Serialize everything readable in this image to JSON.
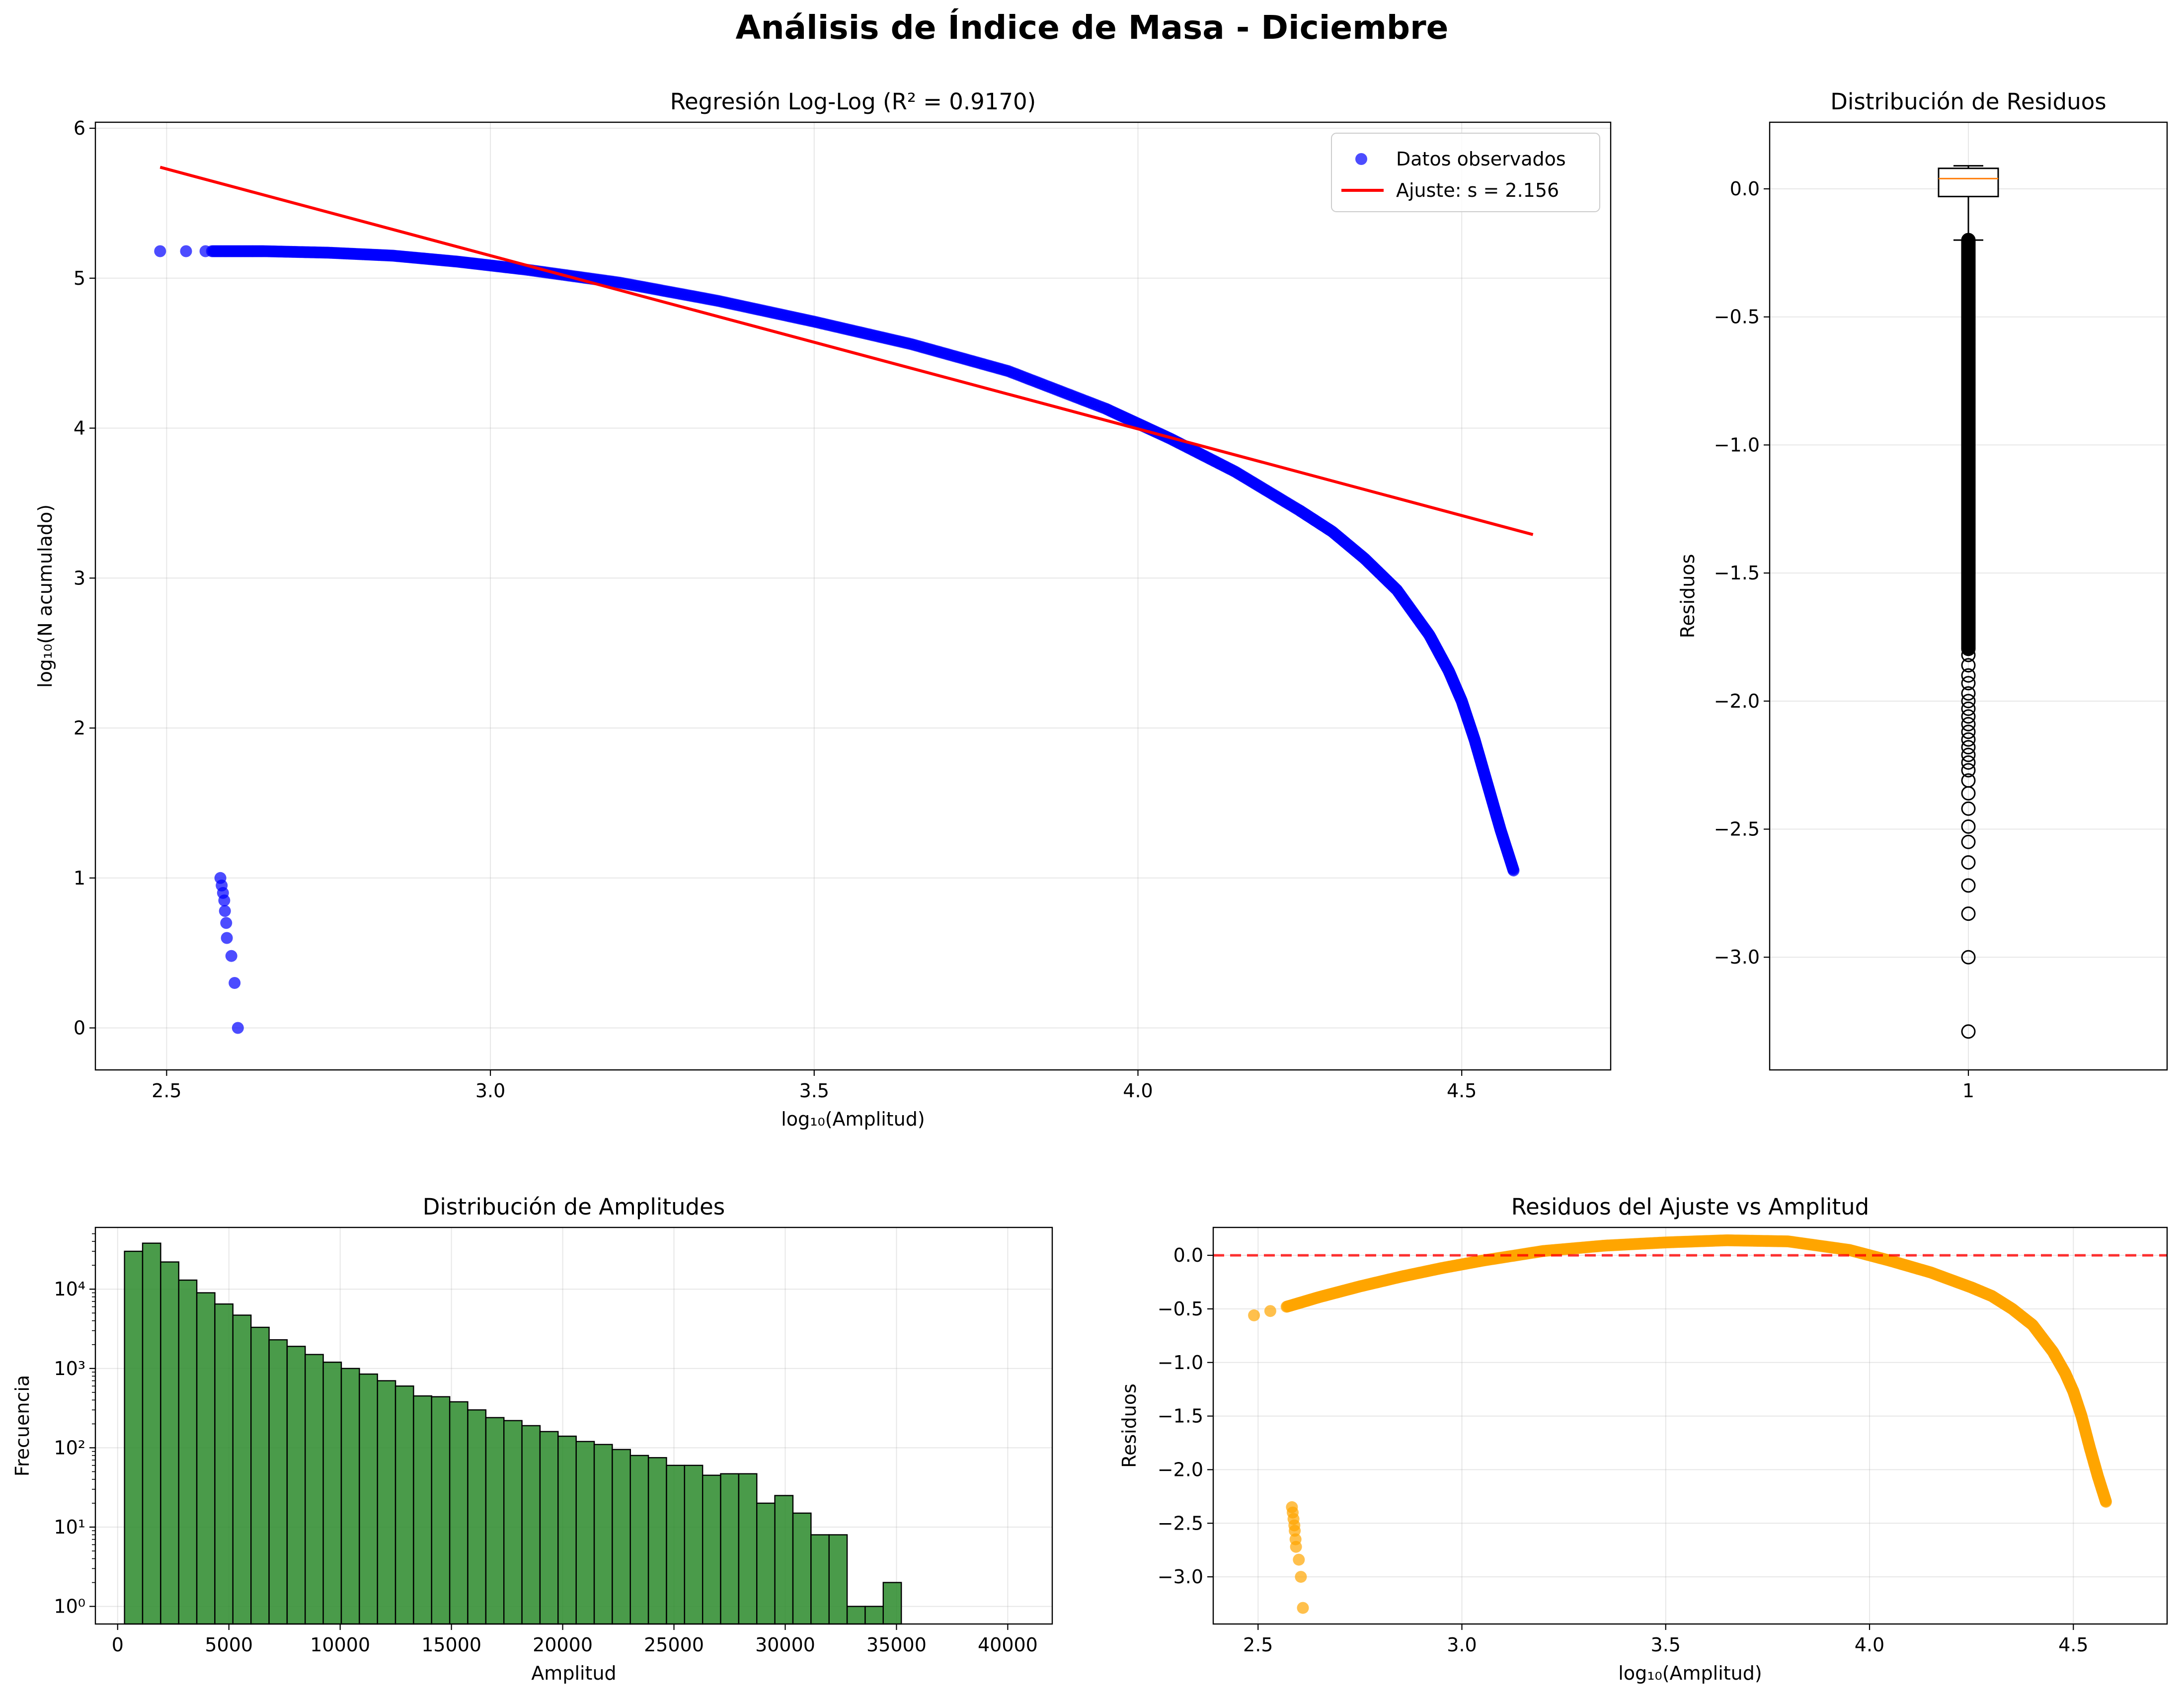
{
  "figure": {
    "suptitle": "Análisis de Índice de Masa - Diciembre"
  },
  "chart_data": [
    {
      "id": "loglog",
      "type": "scatter",
      "title": "Regresión Log-Log (R² = 0.9170)",
      "xlabel": "log₁₀(Amplitud)",
      "ylabel": "log₁₀(N acumulado)",
      "xlim": [
        2.39,
        4.73
      ],
      "ylim": [
        -0.28,
        6.04
      ],
      "xticks": [
        2.5,
        3.0,
        3.5,
        4.0,
        4.5
      ],
      "xtick_labels": [
        "2.5",
        "3.0",
        "3.5",
        "4.0",
        "4.5"
      ],
      "yticks": [
        0,
        1,
        2,
        3,
        4,
        5,
        6
      ],
      "ytick_labels": [
        "0",
        "1",
        "2",
        "3",
        "4",
        "5",
        "6"
      ],
      "grid": true,
      "legend": {
        "position": "top-right",
        "entries": [
          "Datos observados",
          "Ajuste: s = 2.156"
        ]
      },
      "series": [
        {
          "name": "Datos observados",
          "kind": "scatter",
          "color": "#0000ff",
          "curve_x": [
            2.57,
            2.65,
            2.75,
            2.85,
            2.95,
            3.05,
            3.2,
            3.35,
            3.5,
            3.65,
            3.8,
            3.95,
            4.05,
            4.15,
            4.25,
            4.3,
            4.35,
            4.4,
            4.45,
            4.48,
            4.5,
            4.52,
            4.54,
            4.56,
            4.58
          ],
          "curve_y": [
            5.18,
            5.18,
            5.17,
            5.15,
            5.11,
            5.06,
            4.97,
            4.85,
            4.71,
            4.56,
            4.38,
            4.13,
            3.93,
            3.71,
            3.45,
            3.31,
            3.13,
            2.92,
            2.62,
            2.38,
            2.18,
            1.92,
            1.62,
            1.32,
            1.05
          ],
          "isolated_x": [
            2.49,
            2.53,
            2.56,
            2.583,
            2.585,
            2.587,
            2.589,
            2.59,
            2.592,
            2.593,
            2.6,
            2.605,
            2.61
          ],
          "isolated_y": [
            5.18,
            5.18,
            5.18,
            1.0,
            0.95,
            0.9,
            0.85,
            0.78,
            0.7,
            0.6,
            0.48,
            0.3,
            0.0
          ]
        },
        {
          "name": "Ajuste: s = 2.156",
          "kind": "line",
          "color": "#ff0000",
          "x": [
            2.49,
            4.61
          ],
          "y": [
            5.74,
            3.29
          ]
        }
      ]
    },
    {
      "id": "boxplot",
      "type": "box",
      "title": "Distribución de Residuos",
      "xlabel": "",
      "ylabel": "Residuos",
      "xlim": [
        0.5,
        1.5
      ],
      "ylim": [
        -3.44,
        0.26
      ],
      "xticks": [
        1
      ],
      "xtick_labels": [
        "1"
      ],
      "yticks": [
        0.0,
        -0.5,
        -1.0,
        -1.5,
        -2.0,
        -2.5,
        -3.0
      ],
      "ytick_labels": [
        "0.0",
        "−0.5",
        "−1.0",
        "−1.5",
        "−2.0",
        "−2.5",
        "−3.0"
      ],
      "grid": true,
      "box": {
        "position": 1,
        "whisker_high": 0.09,
        "q3": 0.08,
        "median": 0.04,
        "q1": -0.03,
        "whisker_low": -0.2
      },
      "outliers_dense_range": [
        -1.8,
        -0.2
      ],
      "outliers": [
        -1.82,
        -1.86,
        -1.9,
        -1.93,
        -1.97,
        -2.0,
        -2.03,
        -2.06,
        -2.09,
        -2.12,
        -2.15,
        -2.18,
        -2.21,
        -2.24,
        -2.27,
        -2.31,
        -2.36,
        -2.42,
        -2.49,
        -2.55,
        -2.63,
        -2.72,
        -2.83,
        -3.0,
        -3.29
      ]
    },
    {
      "id": "histogram",
      "type": "bar",
      "title": "Distribución de Amplitudes",
      "xlabel": "Amplitud",
      "ylabel": "Frecuencia",
      "yscale": "log",
      "xlim": [
        -1000,
        42000
      ],
      "ylim": [
        0.6,
        60000
      ],
      "bin_start": 309,
      "bin_width": 811.8,
      "xticks": [
        0,
        5000,
        10000,
        15000,
        20000,
        25000,
        30000,
        35000,
        40000
      ],
      "xtick_labels": [
        "0",
        "5000",
        "10000",
        "15000",
        "20000",
        "25000",
        "30000",
        "35000",
        "40000"
      ],
      "yticks": [
        1,
        10,
        100,
        1000,
        10000
      ],
      "ytick_labels": [
        "10⁰",
        "10¹",
        "10²",
        "10³",
        "10⁴"
      ],
      "grid": true,
      "color": "#2a8a2a",
      "values": [
        30000,
        38000,
        22000,
        13000,
        9000,
        6500,
        4700,
        3300,
        2300,
        1900,
        1500,
        1200,
        1000,
        850,
        700,
        600,
        450,
        440,
        380,
        300,
        240,
        220,
        190,
        160,
        140,
        120,
        110,
        95,
        80,
        75,
        60,
        60,
        45,
        47,
        47,
        20,
        25,
        15,
        8,
        8,
        1,
        1,
        2
      ]
    },
    {
      "id": "residuals",
      "type": "scatter",
      "title": "Residuos del Ajuste vs Amplitud",
      "xlabel": "log₁₀(Amplitud)",
      "ylabel": "Residuos",
      "xlim": [
        2.39,
        4.73
      ],
      "ylim": [
        -3.44,
        0.26
      ],
      "xticks": [
        2.5,
        3.0,
        3.5,
        4.0,
        4.5
      ],
      "xtick_labels": [
        "2.5",
        "3.0",
        "3.5",
        "4.0",
        "4.5"
      ],
      "yticks": [
        0.0,
        -0.5,
        -1.0,
        -1.5,
        -2.0,
        -2.5,
        -3.0
      ],
      "ytick_labels": [
        "0.0",
        "−0.5",
        "−1.0",
        "−1.5",
        "−2.0",
        "−2.5",
        "−3.0"
      ],
      "grid": true,
      "zero_line": {
        "y": 0,
        "color": "#ff0000"
      },
      "series": [
        {
          "name": "Residuos",
          "color": "#ffa500",
          "curve_x": [
            2.57,
            2.65,
            2.75,
            2.85,
            2.95,
            3.05,
            3.2,
            3.35,
            3.5,
            3.65,
            3.8,
            3.95,
            4.05,
            4.15,
            4.25,
            4.3,
            4.35,
            4.4,
            4.45,
            4.48,
            4.5,
            4.52,
            4.54,
            4.56,
            4.58
          ],
          "curve_y": [
            -0.48,
            -0.39,
            -0.29,
            -0.2,
            -0.12,
            -0.05,
            0.04,
            0.09,
            0.12,
            0.14,
            0.13,
            0.05,
            -0.05,
            -0.16,
            -0.3,
            -0.38,
            -0.5,
            -0.65,
            -0.9,
            -1.1,
            -1.27,
            -1.5,
            -1.79,
            -2.06,
            -2.3
          ],
          "isolated_x": [
            2.49,
            2.53,
            2.583,
            2.585,
            2.587,
            2.589,
            2.59,
            2.592,
            2.593,
            2.6,
            2.605,
            2.61
          ],
          "isolated_y": [
            -0.56,
            -0.52,
            -2.35,
            -2.4,
            -2.46,
            -2.52,
            -2.57,
            -2.65,
            -2.72,
            -2.84,
            -3.0,
            -3.29
          ]
        }
      ]
    }
  ]
}
